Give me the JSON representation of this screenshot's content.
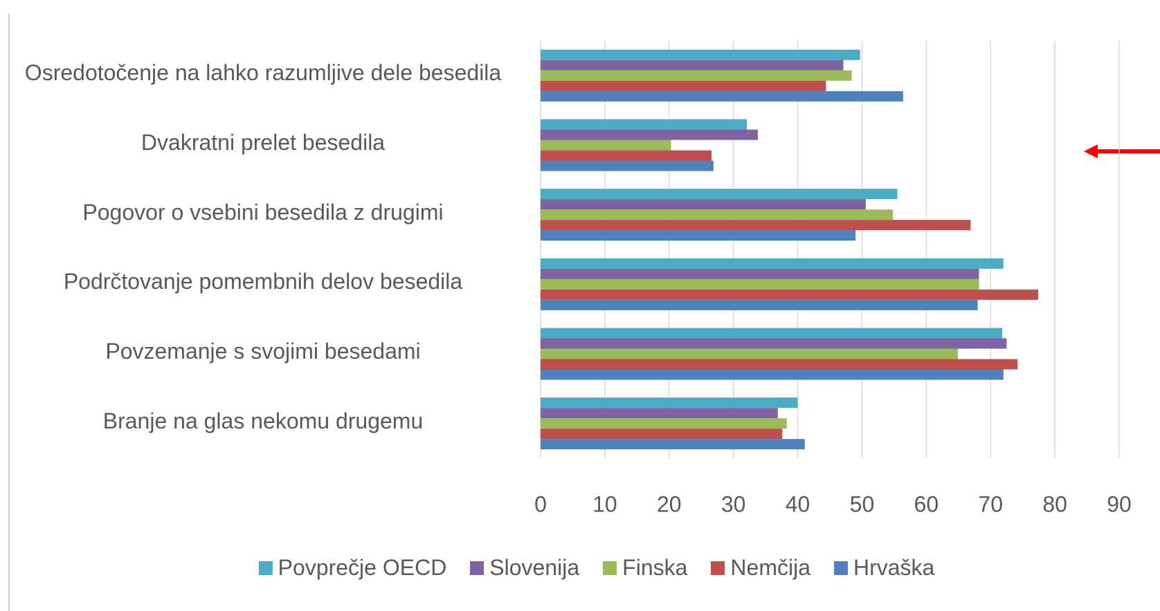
{
  "chart_data": {
    "type": "bar",
    "orientation": "horizontal",
    "categories": [
      "Osredotočenje na lahko razumljive dele besedila",
      "Dvakratni prelet besedila",
      "Pogovor o vsebini besedila z drugimi",
      "Podrčtovanje pomembnih delov besedila",
      "Povzemanje s svojimi besedami",
      "Branje na glas nekomu drugemu"
    ],
    "series": [
      {
        "name": "Povprečje OECD",
        "color": "#4bacc6",
        "values": [
          49.7,
          32.1,
          55.5,
          72.0,
          71.8,
          40.0
        ]
      },
      {
        "name": "Slovenija",
        "color": "#8064a2",
        "values": [
          47.1,
          33.8,
          50.6,
          68.2,
          72.5,
          36.9
        ]
      },
      {
        "name": "Finska",
        "color": "#9bbb59",
        "values": [
          48.4,
          20.3,
          54.8,
          68.2,
          64.9,
          38.3
        ]
      },
      {
        "name": "Nemčija",
        "color": "#c0504d",
        "values": [
          44.4,
          26.6,
          66.9,
          77.4,
          74.2,
          37.6
        ]
      },
      {
        "name": "Hrvaška",
        "color": "#4f81bd",
        "values": [
          56.4,
          26.9,
          49.0,
          68.0,
          72.0,
          41.1
        ]
      }
    ],
    "xlim": [
      0,
      90
    ],
    "xticks": [
      0,
      10,
      20,
      30,
      40,
      50,
      60,
      70,
      80,
      90
    ],
    "grid": true,
    "legend": "bottom"
  }
}
